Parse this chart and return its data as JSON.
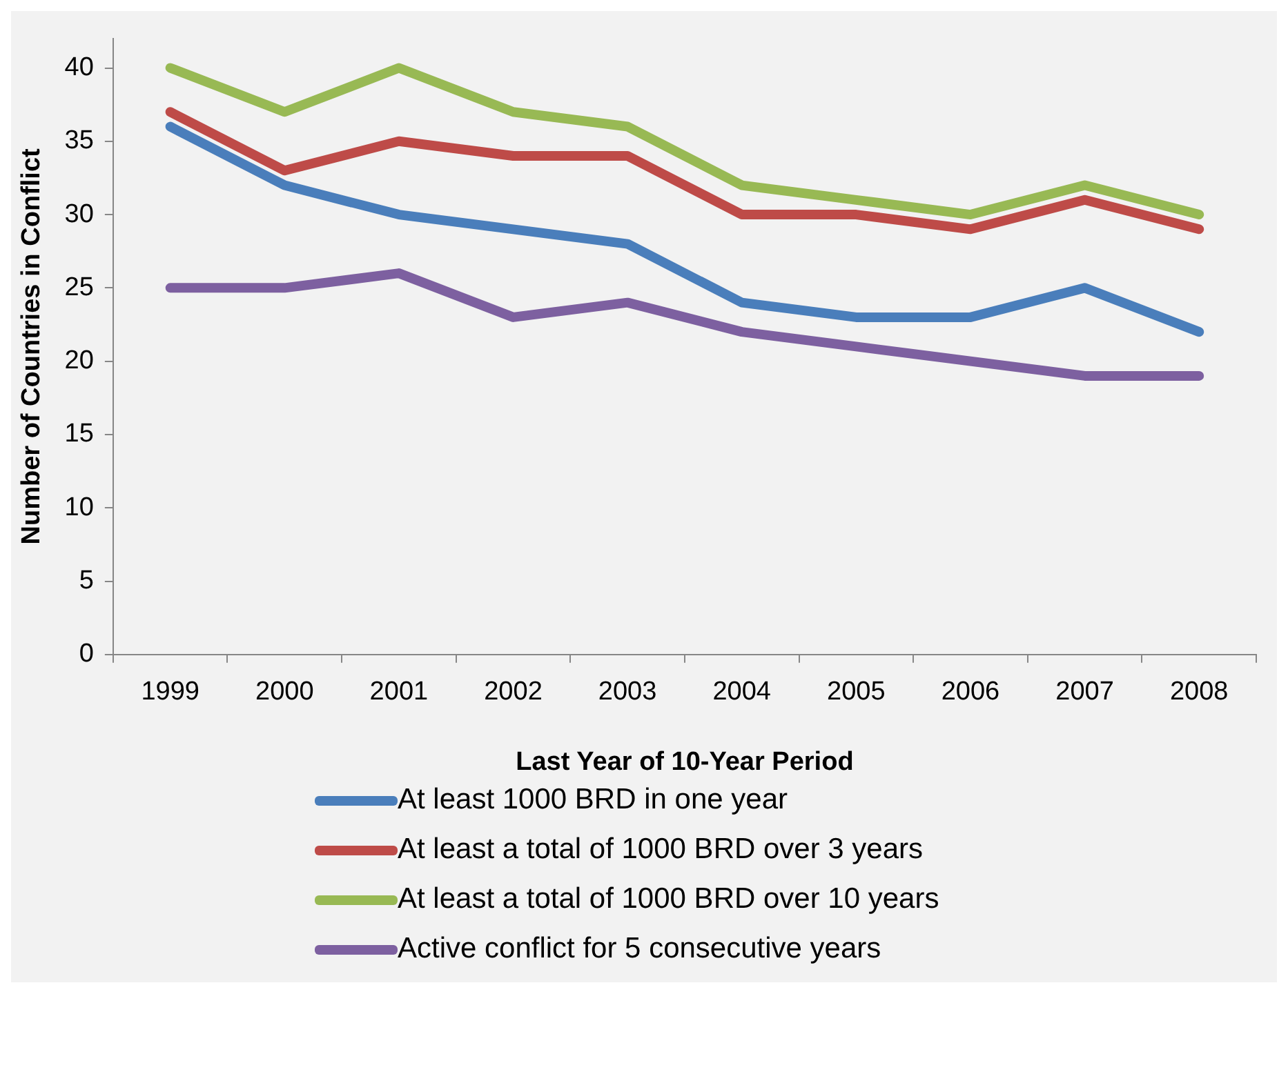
{
  "chart_data": {
    "type": "line",
    "xlabel": "Last Year of 10-Year Period",
    "ylabel": "Number of Countries in Conflict",
    "categories": [
      "1999",
      "2000",
      "2001",
      "2002",
      "2003",
      "2004",
      "2005",
      "2006",
      "2007",
      "2008"
    ],
    "series": [
      {
        "name": "At least 1000 BRD in one year",
        "color": "#4a7ebb",
        "values": [
          36,
          32,
          30,
          29,
          28,
          24,
          23,
          23,
          25,
          22
        ]
      },
      {
        "name": "At least a total of 1000 BRD over 3 years",
        "color": "#be4b48",
        "values": [
          37,
          33,
          35,
          34,
          34,
          30,
          30,
          29,
          31,
          29
        ]
      },
      {
        "name": "At least a total of 1000 BRD over 10 years",
        "color": "#98b954",
        "values": [
          40,
          37,
          40,
          37,
          36,
          32,
          31,
          30,
          32,
          30
        ]
      },
      {
        "name": "Active conflict for 5 consecutive years",
        "color": "#7d60a0",
        "values": [
          25,
          25,
          26,
          23,
          24,
          22,
          21,
          20,
          19,
          19
        ]
      }
    ],
    "ylim": [
      0,
      42
    ],
    "yticks": [
      0,
      5,
      10,
      15,
      20,
      25,
      30,
      35,
      40
    ],
    "grid": false,
    "legend": "bottom",
    "marker": "none",
    "line_style": "solid"
  }
}
